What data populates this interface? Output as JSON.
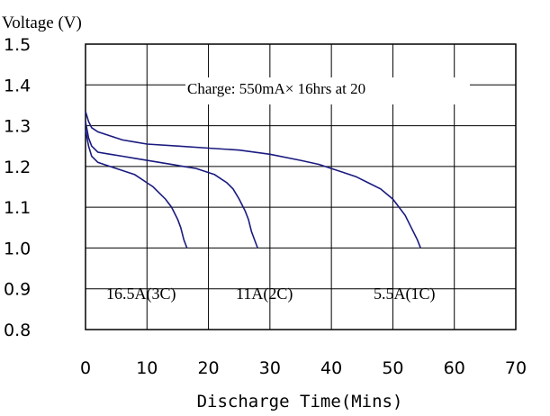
{
  "chart_data": {
    "type": "line",
    "title": "",
    "ylabel": "Voltage (V)",
    "xlabel": "Discharge Time(Mins)",
    "xlim": [
      0,
      70
    ],
    "ylim": [
      0.8,
      1.5
    ],
    "xticks": [
      "0",
      "10",
      "20",
      "30",
      "40",
      "50",
      "60",
      "70"
    ],
    "yticks": [
      "1.5",
      "1.4",
      "1.3",
      "1.2",
      "1.1",
      "1.0",
      "0.9",
      "0.8"
    ],
    "grid": true,
    "line_color": "#1a1a80",
    "annotation": "Charge: 550mA× 16hrs at 20",
    "series": [
      {
        "name": "16.5A(3C)",
        "x": [
          0,
          0.5,
          1,
          2,
          3,
          4,
          5,
          6,
          7,
          8,
          9,
          10,
          11,
          12,
          13,
          14,
          15,
          15.5,
          16,
          16.5
        ],
        "y": [
          1.29,
          1.25,
          1.225,
          1.21,
          1.205,
          1.2,
          1.195,
          1.19,
          1.185,
          1.18,
          1.17,
          1.16,
          1.15,
          1.135,
          1.12,
          1.1,
          1.07,
          1.05,
          1.02,
          1.0
        ]
      },
      {
        "name": "11A(2C)",
        "x": [
          0,
          0.5,
          1,
          2,
          4,
          6,
          8,
          10,
          12,
          14,
          16,
          18,
          20,
          21,
          22,
          23,
          24,
          25,
          26,
          26.5,
          27,
          27.5,
          28
        ],
        "y": [
          1.31,
          1.27,
          1.25,
          1.235,
          1.23,
          1.225,
          1.22,
          1.215,
          1.21,
          1.205,
          1.2,
          1.195,
          1.185,
          1.18,
          1.17,
          1.16,
          1.145,
          1.12,
          1.09,
          1.07,
          1.04,
          1.02,
          1.0
        ]
      },
      {
        "name": "5.5A(1C)",
        "x": [
          0,
          0.5,
          1,
          2,
          4,
          6,
          8,
          10,
          15,
          20,
          25,
          30,
          35,
          38,
          40,
          42,
          44,
          46,
          48,
          50,
          51,
          52,
          53,
          54,
          54.5
        ],
        "y": [
          1.335,
          1.31,
          1.295,
          1.285,
          1.275,
          1.265,
          1.26,
          1.255,
          1.25,
          1.245,
          1.24,
          1.23,
          1.215,
          1.205,
          1.195,
          1.185,
          1.175,
          1.16,
          1.145,
          1.12,
          1.1,
          1.08,
          1.05,
          1.02,
          1.0
        ]
      }
    ]
  }
}
